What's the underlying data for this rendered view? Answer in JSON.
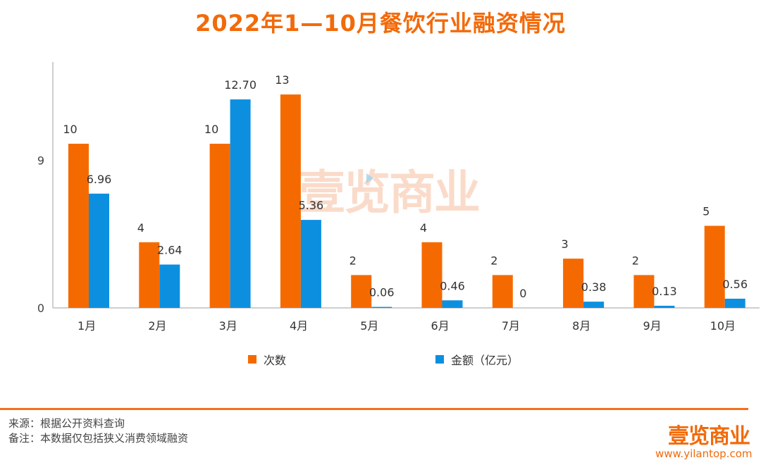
{
  "title": "2022年1—10月餐饮行业融资情况",
  "watermark": "壹览商业",
  "legend": {
    "series1": "次数",
    "series2": "金额（亿元）"
  },
  "footer": {
    "source": "来源：根据公开资料查询",
    "note": "备注：本数据仅包括狭义消费领域融资",
    "logo": "壹览商业",
    "url": "www.yilantop.com"
  },
  "colors": {
    "series1": "#f56a00",
    "series2": "#0d8fe0",
    "accent": "#f26a0a"
  },
  "chart_data": {
    "type": "bar",
    "title": "2022年1—10月餐饮行业融资情况",
    "categories": [
      "1月",
      "2月",
      "3月",
      "4月",
      "5月",
      "6月",
      "7月",
      "8月",
      "9月",
      "10月"
    ],
    "series": [
      {
        "name": "次数",
        "values": [
          10,
          4,
          10,
          13,
          2,
          4,
          2,
          3,
          2,
          5
        ],
        "labels": [
          "10",
          "4",
          "10",
          "13",
          "2",
          "4",
          "2",
          "3",
          "2",
          "5"
        ]
      },
      {
        "name": "金额（亿元）",
        "values": [
          6.96,
          2.64,
          12.7,
          5.36,
          0.06,
          0.46,
          0,
          0.38,
          0.13,
          0.56
        ],
        "labels": [
          "6.96",
          "2.64",
          "12.70",
          "5.36",
          "0.06",
          "0.46",
          "0",
          "0.38",
          "0.13",
          "0.56"
        ]
      }
    ],
    "yticks": [
      0,
      9
    ],
    "ylim": [
      0,
      15
    ],
    "grid": false,
    "legend_position": "bottom"
  }
}
